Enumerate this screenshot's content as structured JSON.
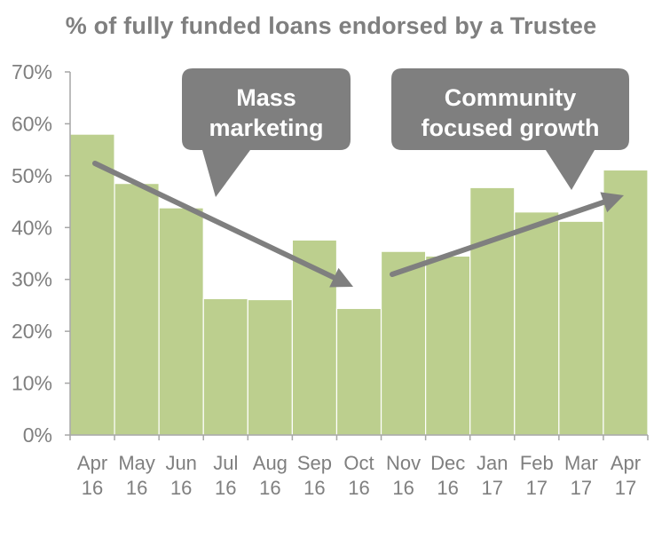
{
  "chart_data": {
    "type": "bar",
    "title": "% of fully funded loans endorsed by a Trustee",
    "categories": [
      [
        "Apr",
        "16"
      ],
      [
        "May",
        "16"
      ],
      [
        "Jun",
        "16"
      ],
      [
        "Jul",
        "16"
      ],
      [
        "Aug",
        "16"
      ],
      [
        "Sep",
        "16"
      ],
      [
        "Oct",
        "16"
      ],
      [
        "Nov",
        "16"
      ],
      [
        "Dec",
        "16"
      ],
      [
        "Jan",
        "17"
      ],
      [
        "Feb",
        "17"
      ],
      [
        "Mar",
        "17"
      ],
      [
        "Apr",
        "17"
      ]
    ],
    "values": [
      58.0,
      48.5,
      43.8,
      26.3,
      26.1,
      37.6,
      24.4,
      35.4,
      34.5,
      47.7,
      43.0,
      41.2,
      51.1
    ],
    "ylim": [
      0,
      70
    ],
    "yticks": [
      "0%",
      "10%",
      "20%",
      "30%",
      "40%",
      "50%",
      "60%",
      "70%"
    ],
    "xlabel": "",
    "ylabel": "",
    "grid": false,
    "bar_color": "#bccf8e",
    "annotations": [
      {
        "text": "Mass marketing",
        "lines": [
          "Mass",
          "marketing"
        ],
        "trend": "decline from Apr 16 to Oct 16"
      },
      {
        "text": "Community focused growth",
        "lines": [
          "Community",
          "focused growth"
        ],
        "trend": "growth from Nov 16 to Apr 17"
      }
    ],
    "annotation_color": "#7f7f7f"
  }
}
